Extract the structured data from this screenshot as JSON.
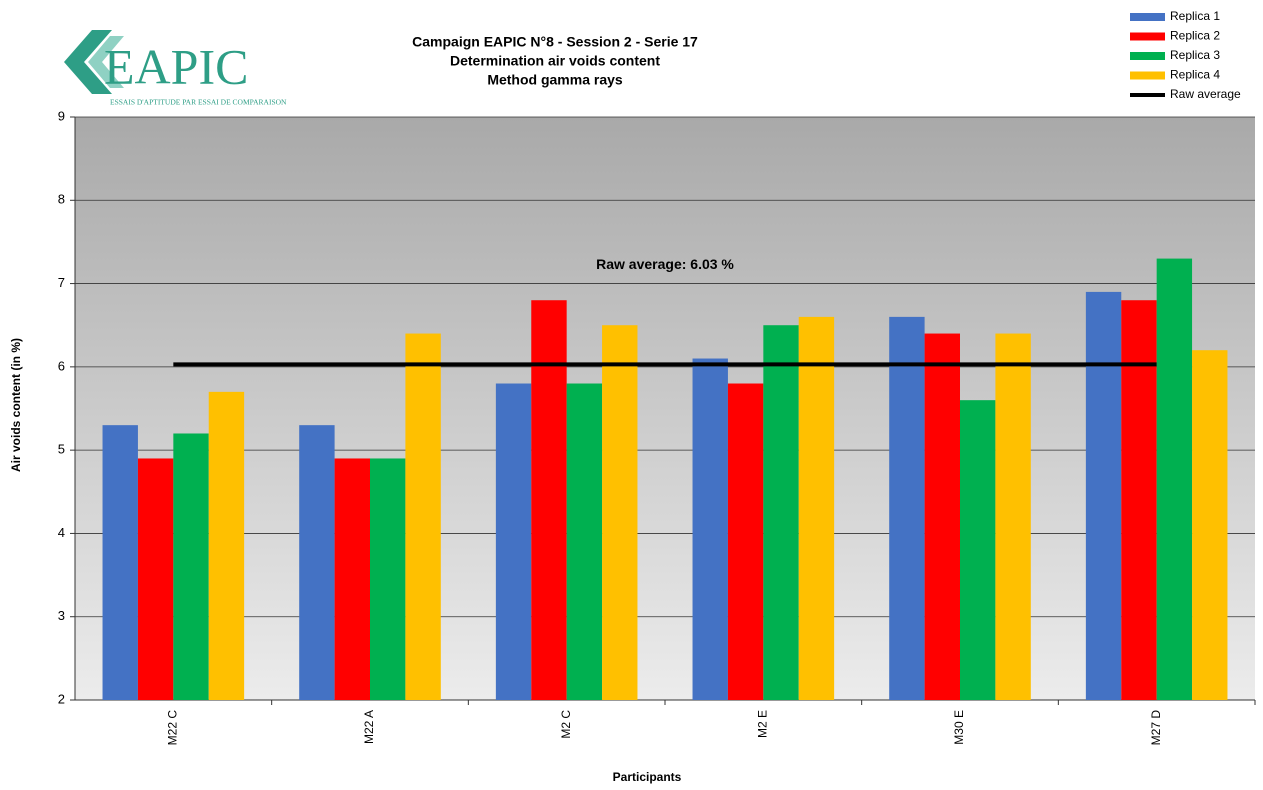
{
  "logo": {
    "text": "EAPIC",
    "tagline": "ESSAIS D'APTITUDE PAR ESSAI DE COMPARAISON"
  },
  "chart_data": {
    "type": "bar",
    "title": [
      "Campaign EAPIC N°8 - Session 2 - Serie 17",
      "Determination air voids content",
      "Method gamma rays"
    ],
    "x_label": "Participants",
    "y_label": "Air voids content (in %)",
    "categories": [
      "M22 C",
      "M22 A",
      "M2 C",
      "M2 E",
      "M30 E",
      "M27 D"
    ],
    "series": [
      {
        "name": "Replica 1",
        "color": "#4472c4",
        "values": [
          5.3,
          5.3,
          5.8,
          6.1,
          6.6,
          6.9
        ]
      },
      {
        "name": "Replica 2",
        "color": "#ff0000",
        "values": [
          4.9,
          4.9,
          6.8,
          5.8,
          6.4,
          6.8
        ]
      },
      {
        "name": "Replica 3",
        "color": "#00b050",
        "values": [
          5.2,
          4.9,
          5.8,
          6.5,
          5.6,
          7.3
        ]
      },
      {
        "name": "Replica 4",
        "color": "#ffc000",
        "values": [
          5.7,
          6.4,
          6.5,
          6.6,
          6.4,
          6.2
        ]
      }
    ],
    "reference_line": {
      "name": "Raw average",
      "value": 6.03,
      "label": "Raw average: 6.03 %",
      "color": "#000000"
    },
    "ylim": [
      2,
      9
    ],
    "yticks": [
      2,
      3,
      4,
      5,
      6,
      7,
      8,
      9
    ],
    "grid": true,
    "legend": "top-right"
  }
}
